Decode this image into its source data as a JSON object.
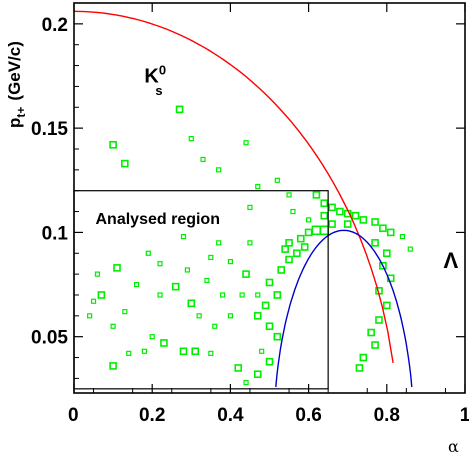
{
  "chart_data": {
    "type": "scatter",
    "xlabel": "α",
    "ylabel": "p",
    "ylabel_sub": "t+",
    "ylabel_units": "(GeV/c)",
    "xlim": [
      0,
      1
    ],
    "ylim": [
      0.023,
      0.21
    ],
    "xticks": [
      {
        "value": 0,
        "label": "0"
      },
      {
        "value": 0.2,
        "label": "0.2"
      },
      {
        "value": 0.4,
        "label": "0.4"
      },
      {
        "value": 0.6,
        "label": "0.6"
      },
      {
        "value": 0.8,
        "label": "0.8"
      },
      {
        "value": 1,
        "label": "1"
      }
    ],
    "yticks": [
      {
        "value": 0.05,
        "label": "0.05"
      },
      {
        "value": 0.1,
        "label": "0.1"
      },
      {
        "value": 0.15,
        "label": "0.15"
      },
      {
        "value": 0.2,
        "label": "0.2"
      }
    ],
    "grid": false,
    "marker_color": "#00ee00",
    "annotations": {
      "kaon_main": "K",
      "kaon_sup": "0",
      "kaon_sub": "s",
      "lambda": "Λ",
      "region": "Analysed region"
    },
    "region": {
      "x": [
        0,
        0.65
      ],
      "y": [
        0.025,
        0.12
      ]
    },
    "curves": [
      {
        "name": "K0s",
        "color": "#ff0000",
        "alpha_center": 0,
        "alpha_halfwidth": 0.83,
        "pt_max": 0.206
      },
      {
        "name": "Lambda",
        "color": "#0000cc",
        "alpha_center": 0.69,
        "alpha_halfwidth": 0.18,
        "pt_max": 0.101
      }
    ],
    "points": [
      [
        0.27,
        0.159,
        3
      ],
      [
        0.1,
        0.142,
        3
      ],
      [
        0.3,
        0.145,
        2
      ],
      [
        0.33,
        0.135,
        2
      ],
      [
        0.13,
        0.133,
        3
      ],
      [
        0.37,
        0.13,
        2
      ],
      [
        0.44,
        0.143,
        2
      ],
      [
        0.47,
        0.122,
        2
      ],
      [
        0.52,
        0.125,
        2
      ],
      [
        0.55,
        0.118,
        2
      ],
      [
        0.56,
        0.11,
        2
      ],
      [
        0.45,
        0.112,
        2
      ],
      [
        0.62,
        0.118,
        3
      ],
      [
        0.64,
        0.114,
        3
      ],
      [
        0.66,
        0.112,
        3
      ],
      [
        0.68,
        0.11,
        3
      ],
      [
        0.7,
        0.109,
        3
      ],
      [
        0.72,
        0.108,
        3
      ],
      [
        0.66,
        0.104,
        3
      ],
      [
        0.7,
        0.104,
        3
      ],
      [
        0.74,
        0.106,
        3
      ],
      [
        0.77,
        0.105,
        3
      ],
      [
        0.79,
        0.102,
        3
      ],
      [
        0.81,
        0.1,
        3
      ],
      [
        0.6,
        0.1,
        3
      ],
      [
        0.62,
        0.101,
        4
      ],
      [
        0.64,
        0.101,
        4
      ],
      [
        0.58,
        0.097,
        3
      ],
      [
        0.54,
        0.092,
        3
      ],
      [
        0.45,
        0.095,
        2
      ],
      [
        0.37,
        0.095,
        2
      ],
      [
        0.28,
        0.098,
        2
      ],
      [
        0.19,
        0.09,
        2
      ],
      [
        0.22,
        0.085,
        2
      ],
      [
        0.29,
        0.082,
        2
      ],
      [
        0.35,
        0.088,
        2
      ],
      [
        0.4,
        0.086,
        2
      ],
      [
        0.11,
        0.083,
        3
      ],
      [
        0.07,
        0.07,
        3
      ],
      [
        0.05,
        0.067,
        2
      ],
      [
        0.04,
        0.06,
        2
      ],
      [
        0.16,
        0.075,
        2
      ],
      [
        0.26,
        0.074,
        3
      ],
      [
        0.3,
        0.066,
        3
      ],
      [
        0.32,
        0.06,
        2
      ],
      [
        0.36,
        0.055,
        2
      ],
      [
        0.4,
        0.06,
        2
      ],
      [
        0.43,
        0.07,
        2
      ],
      [
        0.47,
        0.07,
        2
      ],
      [
        0.1,
        0.055,
        2
      ],
      [
        0.2,
        0.05,
        2
      ],
      [
        0.23,
        0.047,
        3
      ],
      [
        0.18,
        0.043,
        2
      ],
      [
        0.28,
        0.043,
        3
      ],
      [
        0.31,
        0.043,
        3
      ],
      [
        0.35,
        0.042,
        2
      ],
      [
        0.48,
        0.043,
        2
      ],
      [
        0.42,
        0.035,
        3
      ],
      [
        0.47,
        0.032,
        3
      ],
      [
        0.44,
        0.028,
        2
      ],
      [
        0.1,
        0.036,
        3
      ],
      [
        0.14,
        0.042,
        2
      ],
      [
        0.5,
        0.038,
        3
      ],
      [
        0.38,
        0.07,
        2
      ],
      [
        0.34,
        0.077,
        2
      ],
      [
        0.44,
        0.08,
        3
      ],
      [
        0.77,
        0.095,
        3
      ],
      [
        0.8,
        0.09,
        3
      ],
      [
        0.79,
        0.084,
        3
      ],
      [
        0.81,
        0.078,
        3
      ],
      [
        0.78,
        0.072,
        3
      ],
      [
        0.8,
        0.065,
        3
      ],
      [
        0.78,
        0.058,
        3
      ],
      [
        0.76,
        0.052,
        3
      ],
      [
        0.77,
        0.046,
        3
      ],
      [
        0.74,
        0.04,
        3
      ],
      [
        0.73,
        0.035,
        3
      ],
      [
        0.52,
        0.05,
        3
      ],
      [
        0.5,
        0.055,
        3
      ],
      [
        0.47,
        0.06,
        3
      ],
      [
        0.49,
        0.065,
        3
      ],
      [
        0.52,
        0.07,
        3
      ],
      [
        0.5,
        0.076,
        3
      ],
      [
        0.53,
        0.082,
        3
      ],
      [
        0.55,
        0.087,
        3
      ],
      [
        0.57,
        0.09,
        3
      ],
      [
        0.59,
        0.093,
        3
      ],
      [
        0.55,
        0.095,
        3
      ],
      [
        0.6,
        0.106,
        2
      ],
      [
        0.64,
        0.108,
        3
      ],
      [
        0.22,
        0.07,
        2
      ],
      [
        0.13,
        0.062,
        2
      ],
      [
        0.06,
        0.08,
        2
      ],
      [
        0.86,
        0.092,
        2
      ],
      [
        0.84,
        0.098,
        2
      ]
    ]
  }
}
